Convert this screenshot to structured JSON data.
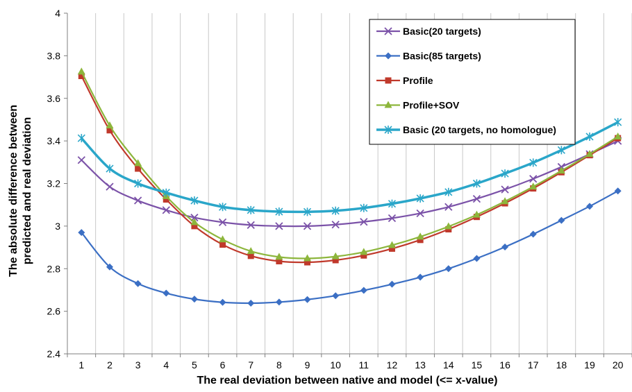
{
  "chart_data": {
    "type": "line",
    "title": "",
    "xlabel": "The real deviation between native and model (<= x-value)",
    "ylabel_line1": "The absolute difference between",
    "ylabel_line2": "predicted and real deviation",
    "x": [
      1,
      2,
      3,
      4,
      5,
      6,
      7,
      8,
      9,
      10,
      11,
      12,
      13,
      14,
      15,
      16,
      17,
      18,
      19,
      20
    ],
    "xlim": [
      0.5,
      20.5
    ],
    "ylim": [
      2.4,
      4.0
    ],
    "y_ticks": [
      "2.4",
      "2.6",
      "2.8",
      "3",
      "3.2",
      "3.4",
      "3.6",
      "3.8",
      "4"
    ],
    "grid": "vertical",
    "legend_position": "top-right",
    "series": [
      {
        "name": "Basic(20 targets)",
        "color": "#7b52a8",
        "marker": "x",
        "values": [
          3.31,
          3.185,
          3.12,
          3.075,
          3.04,
          3.018,
          3.005,
          3.0,
          3.0,
          3.007,
          3.02,
          3.037,
          3.06,
          3.09,
          3.128,
          3.172,
          3.222,
          3.278,
          3.338,
          3.4
        ]
      },
      {
        "name": "Basic(85 targets)",
        "color": "#3b6fc4",
        "marker": "diamond",
        "values": [
          2.97,
          2.808,
          2.73,
          2.685,
          2.657,
          2.642,
          2.638,
          2.643,
          2.655,
          2.673,
          2.698,
          2.727,
          2.76,
          2.8,
          2.848,
          2.902,
          2.962,
          3.027,
          3.093,
          3.165
        ]
      },
      {
        "name": "Profile",
        "color": "#c0392b",
        "marker": "square",
        "values": [
          3.705,
          3.45,
          3.27,
          3.125,
          3.0,
          2.913,
          2.86,
          2.835,
          2.83,
          2.84,
          2.862,
          2.894,
          2.935,
          2.985,
          3.043,
          3.107,
          3.177,
          3.253,
          3.333,
          3.413
        ]
      },
      {
        "name": "Profile+SOV",
        "color": "#8db63c",
        "marker": "triangle",
        "values": [
          3.725,
          3.472,
          3.295,
          3.14,
          3.018,
          2.937,
          2.882,
          2.855,
          2.848,
          2.857,
          2.878,
          2.91,
          2.95,
          2.998,
          3.053,
          3.116,
          3.185,
          3.26,
          3.338,
          3.42
        ]
      },
      {
        "name": "Basic (20 targets, no homologue)",
        "color": "#2aa6c9",
        "marker": "star",
        "values": [
          3.413,
          3.27,
          3.2,
          3.157,
          3.12,
          3.09,
          3.075,
          3.068,
          3.067,
          3.072,
          3.085,
          3.105,
          3.13,
          3.16,
          3.2,
          3.247,
          3.298,
          3.357,
          3.42,
          3.488
        ]
      }
    ]
  }
}
